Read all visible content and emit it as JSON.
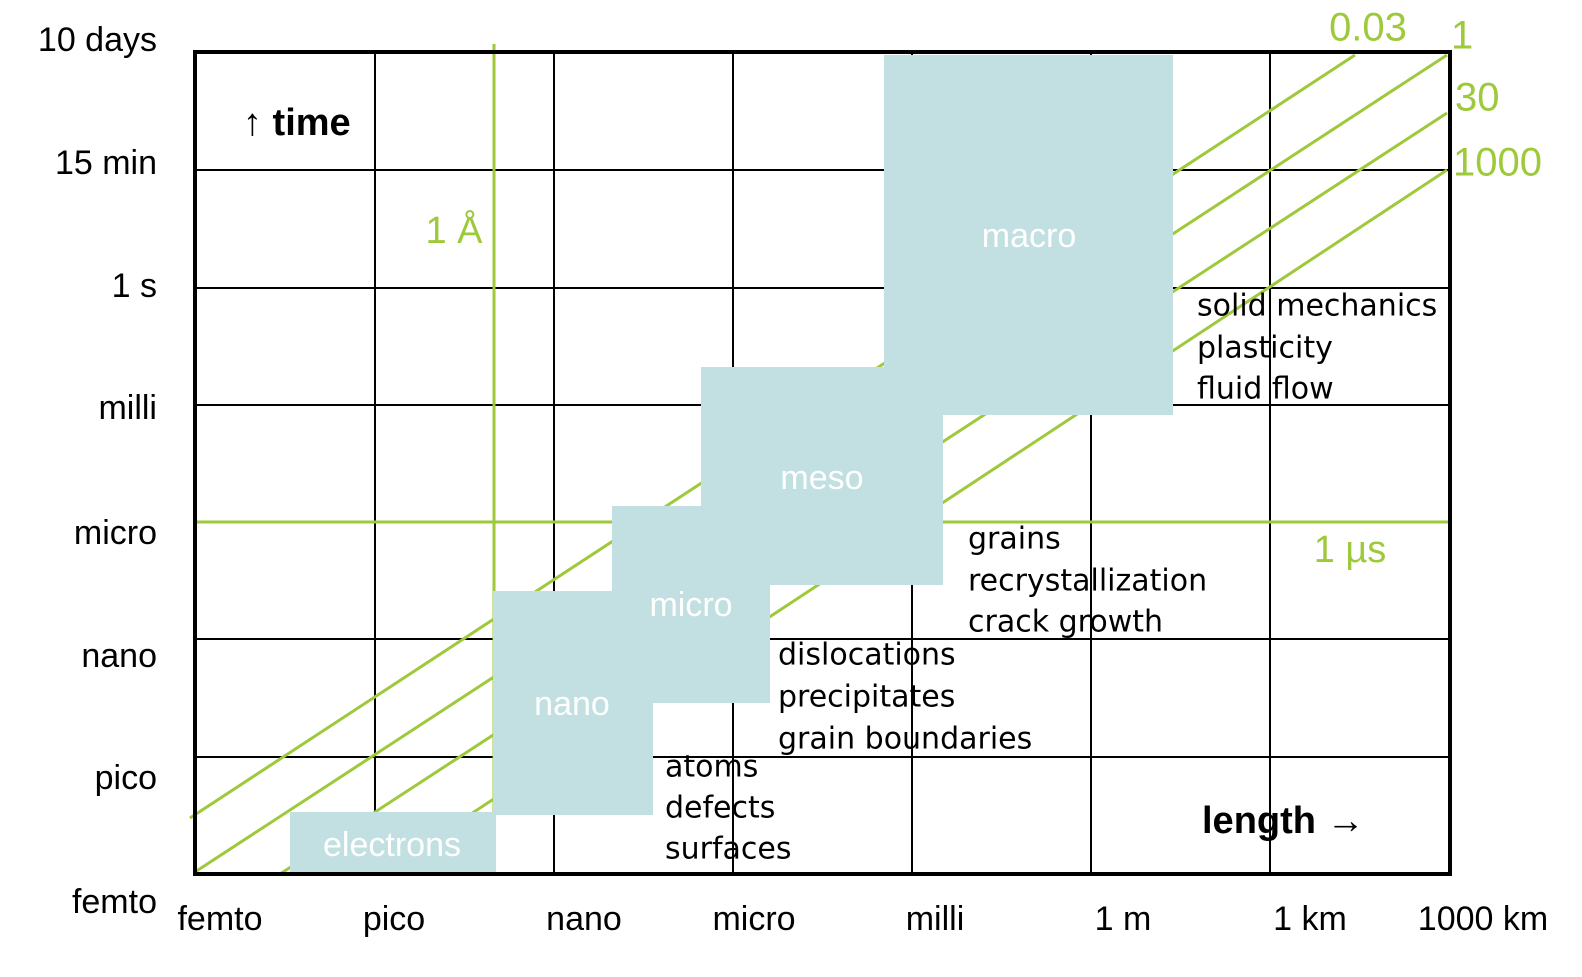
{
  "y_axis": {
    "title": "↑ time",
    "labels": [
      "10 days",
      "15 min",
      "1 s",
      "milli",
      "micro",
      "nano",
      "pico",
      "femto"
    ]
  },
  "x_axis": {
    "title": "length →",
    "labels": [
      "femto",
      "pico",
      "nano",
      "micro",
      "milli",
      "1 m",
      "1 km",
      "1000 km"
    ]
  },
  "reference_lines": {
    "length": "1 Å",
    "time": "1 µs",
    "diagonals": [
      "0.03",
      "1",
      "30",
      "1000"
    ]
  },
  "regimes": [
    {
      "label": "electrons",
      "phenomena": []
    },
    {
      "label": "nano",
      "phenomena": [
        "atoms",
        "defects",
        "surfaces"
      ]
    },
    {
      "label": "micro",
      "phenomena": [
        "dislocations",
        "precipitates",
        "grain boundaries"
      ]
    },
    {
      "label": "meso",
      "phenomena": [
        "grains",
        "recrystallization",
        "crack growth"
      ]
    },
    {
      "label": "macro",
      "phenomena": [
        "solid mechanics",
        "plasticity",
        "fluid flow"
      ]
    }
  ]
}
